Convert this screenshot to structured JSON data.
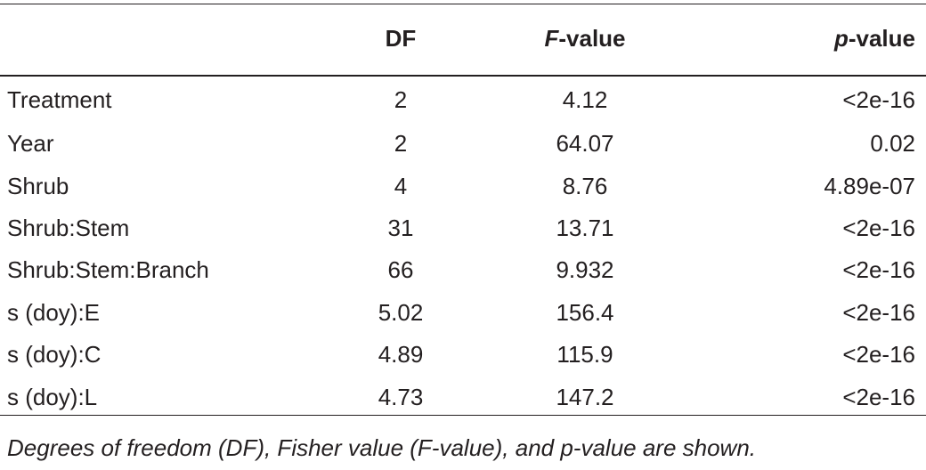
{
  "header": {
    "col0": "",
    "col1": "DF",
    "col2_italic": "F",
    "col2_rest": "-value",
    "col3_italic": "p",
    "col3_rest": "-value"
  },
  "rows": [
    {
      "term": "Treatment",
      "df": "2",
      "f": "4.12",
      "p": "<2e-16"
    },
    {
      "term": "Year",
      "df": "2",
      "f": "64.07",
      "p": "0.02"
    },
    {
      "term": "Shrub",
      "df": "4",
      "f": "8.76",
      "p": "4.89e-07"
    },
    {
      "term": "Shrub:Stem",
      "df": "31",
      "f": "13.71",
      "p": "<2e-16"
    },
    {
      "term": "Shrub:Stem:Branch",
      "df": "66",
      "f": "9.932",
      "p": "<2e-16"
    },
    {
      "term": "s (doy):E",
      "df": "5.02",
      "f": "156.4",
      "p": "<2e-16"
    },
    {
      "term": "s (doy):C",
      "df": "4.89",
      "f": "115.9",
      "p": "<2e-16"
    },
    {
      "term": "s (doy):L",
      "df": "4.73",
      "f": "147.2",
      "p": "<2e-16"
    }
  ],
  "footnote": "Degrees of freedom (DF), Fisher value (F-value), and p-value are shown."
}
